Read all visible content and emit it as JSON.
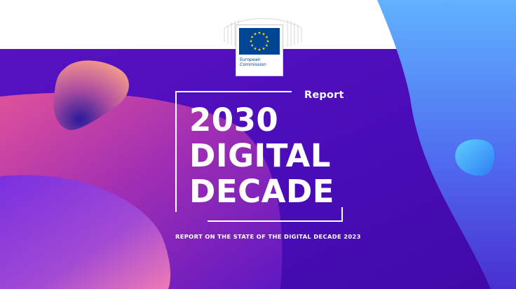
{
  "logo": {
    "line1": "European",
    "line2": "Commission",
    "icon": "eu-flag-icon",
    "brand_color": "#004494",
    "star_color": "#FFDD00"
  },
  "cover": {
    "badge": "Report",
    "title_lines": [
      "2030",
      "DIGITAL",
      "DECADE"
    ],
    "subtitle": "REPORT ON THE STATE OF THE DIGITAL DECADE 2023"
  },
  "colors": {
    "background": "#4a0db8",
    "accent_blue": "#5aa7f5",
    "accent_pink": "#d24aa3",
    "text": "#ffffff"
  }
}
